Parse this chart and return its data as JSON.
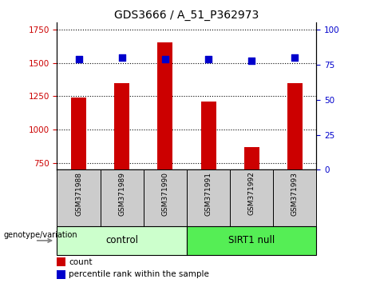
{
  "title": "GDS3666 / A_51_P362973",
  "samples": [
    "GSM371988",
    "GSM371989",
    "GSM371990",
    "GSM371991",
    "GSM371992",
    "GSM371993"
  ],
  "counts": [
    1240,
    1350,
    1650,
    1210,
    870,
    1350
  ],
  "percentile_ranks": [
    79,
    80,
    79,
    79,
    78,
    80
  ],
  "ylim_left": [
    700,
    1800
  ],
  "ylim_right": [
    0,
    105
  ],
  "yticks_left": [
    750,
    1000,
    1250,
    1500,
    1750
  ],
  "yticks_right": [
    0,
    25,
    50,
    75,
    100
  ],
  "bar_color": "#cc0000",
  "dot_color": "#0000cc",
  "groups": [
    {
      "label": "control",
      "indices": [
        0,
        1,
        2
      ],
      "color": "#ccffcc"
    },
    {
      "label": "SIRT1 null",
      "indices": [
        3,
        4,
        5
      ],
      "color": "#55ee55"
    }
  ],
  "group_header": "genotype/variation",
  "legend_count_label": "count",
  "legend_pct_label": "percentile rank within the sample",
  "tick_label_color_left": "#cc0000",
  "tick_label_color_right": "#0000cc",
  "bar_width": 0.35,
  "dot_size": 40,
  "sample_box_color": "#cccccc",
  "title_fontsize": 10
}
